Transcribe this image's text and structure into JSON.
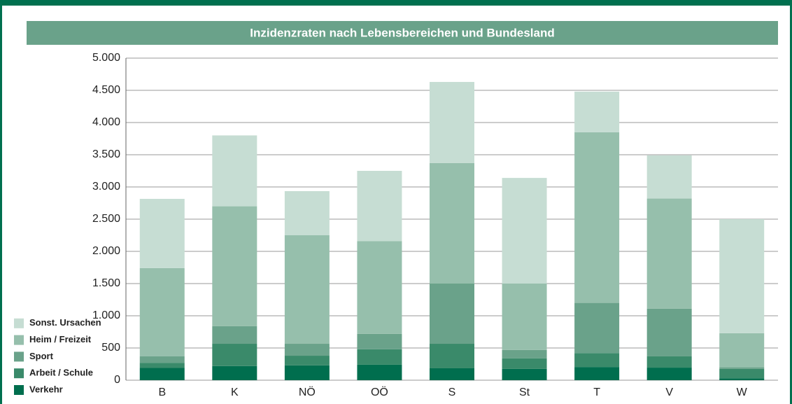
{
  "chart_data": {
    "type": "stacked_bar",
    "title": "Inzidenzraten nach Lebensbereichen und Bundesland",
    "categories": [
      "B",
      "K",
      "NÖ",
      "OÖ",
      "S",
      "St",
      "T",
      "V",
      "W"
    ],
    "series": [
      {
        "name": "Verkehr",
        "color": "#006e4e",
        "values": [
          190,
          220,
          230,
          240,
          185,
          175,
          205,
          195,
          30
        ]
      },
      {
        "name": "Arbeit / Schule",
        "color": "#3a8a6a",
        "values": [
          80,
          345,
          150,
          240,
          380,
          165,
          215,
          175,
          145
        ]
      },
      {
        "name": "Sport",
        "color": "#6aa28a",
        "values": [
          100,
          275,
          185,
          240,
          935,
          130,
          780,
          740,
          25
        ]
      },
      {
        "name": "Heim / Freizeit",
        "color": "#96bfac",
        "values": [
          1370,
          1860,
          1685,
          1440,
          1870,
          1030,
          2650,
          1710,
          530
        ]
      },
      {
        "name": "Sonst. Ursachen",
        "color": "#c6ddd3",
        "values": [
          1075,
          1100,
          685,
          1090,
          1260,
          1640,
          630,
          670,
          1770
        ]
      }
    ],
    "ylim": [
      0,
      5000
    ],
    "yticks": [
      0,
      500,
      {
        "value": 1000,
        "label": "1.000"
      },
      {
        "value": 1500,
        "label": "1.500"
      },
      {
        "value": 2000,
        "label": "2.000"
      },
      {
        "value": 2500,
        "label": "2.500"
      },
      {
        "value": 3000,
        "label": "3.000"
      },
      {
        "value": 3500,
        "label": "3.500"
      },
      {
        "value": 4000,
        "label": "4.000"
      },
      {
        "value": 4500,
        "label": "4.500"
      },
      {
        "value": 5000,
        "label": "5.000"
      }
    ],
    "grid": true,
    "legend": "bottom-left"
  }
}
